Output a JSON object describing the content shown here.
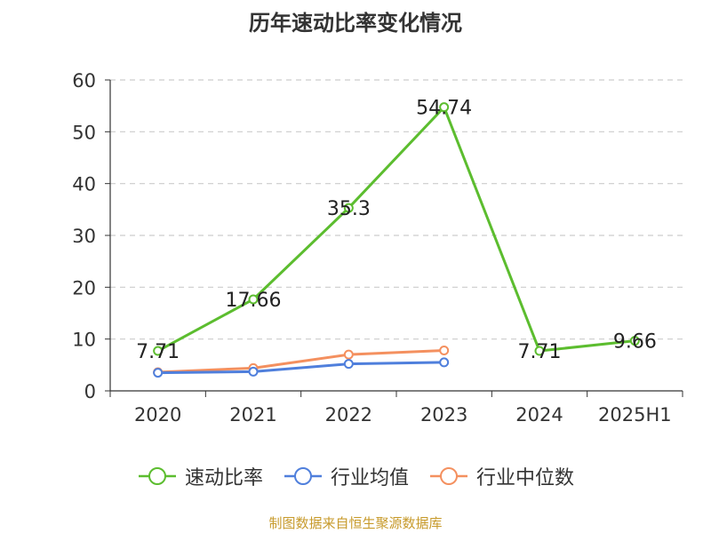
{
  "chart_data": {
    "type": "line",
    "title": "历年速动比率变化情况",
    "categories": [
      "2020",
      "2021",
      "2022",
      "2023",
      "2024",
      "2025H1"
    ],
    "ylim": [
      0,
      60
    ],
    "yticks": [
      0,
      10,
      20,
      30,
      40,
      50,
      60
    ],
    "grid": true,
    "legend_position": "bottom",
    "series": [
      {
        "name": "速动比率",
        "color": "#5cbd2f",
        "values": [
          7.71,
          17.66,
          35.3,
          54.74,
          7.71,
          9.66
        ],
        "labels": [
          "7.71",
          "17.66",
          "35.3",
          "54.74",
          "7.71",
          "9.66"
        ]
      },
      {
        "name": "行业均值",
        "color": "#4f7fdc",
        "values": [
          3.5,
          3.7,
          5.2,
          5.5,
          null,
          null
        ]
      },
      {
        "name": "行业中位数",
        "color": "#f4905f",
        "values": [
          3.6,
          4.4,
          7.0,
          7.8,
          null,
          null
        ]
      }
    ]
  },
  "source": "制图数据来自恒生聚源数据库"
}
